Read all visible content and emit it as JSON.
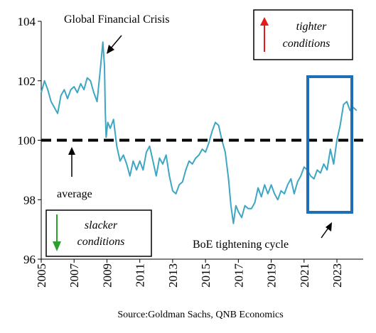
{
  "chart_data": {
    "type": "line",
    "title": "",
    "xlabel": "",
    "ylabel": "",
    "ylim": [
      96,
      104
    ],
    "xlim": [
      2005,
      2024.6
    ],
    "yticks": [
      96,
      98,
      100,
      102,
      104
    ],
    "xticks": [
      "2005",
      "2007",
      "2009",
      "2011",
      "2013",
      "2015",
      "2017",
      "2019",
      "2021",
      "2023"
    ],
    "reference_line": {
      "y": 100,
      "label": "average",
      "style": "dashed",
      "color": "#000000"
    },
    "series": [
      {
        "color": "#3ea6c2",
        "x": [
          2005.0,
          2005.2,
          2005.4,
          2005.6,
          2005.8,
          2006.0,
          2006.2,
          2006.4,
          2006.6,
          2006.8,
          2007.0,
          2007.2,
          2007.4,
          2007.6,
          2007.8,
          2008.0,
          2008.2,
          2008.4,
          2008.6,
          2008.75,
          2008.85,
          2008.9,
          2008.95,
          2009.05,
          2009.2,
          2009.4,
          2009.6,
          2009.8,
          2010.0,
          2010.2,
          2010.4,
          2010.6,
          2010.8,
          2011.0,
          2011.2,
          2011.4,
          2011.6,
          2011.8,
          2012.0,
          2012.2,
          2012.4,
          2012.6,
          2012.8,
          2013.0,
          2013.2,
          2013.4,
          2013.6,
          2013.8,
          2014.0,
          2014.2,
          2014.4,
          2014.6,
          2014.8,
          2015.0,
          2015.2,
          2015.4,
          2015.6,
          2015.8,
          2016.0,
          2016.2,
          2016.4,
          2016.55,
          2016.7,
          2016.85,
          2017.0,
          2017.2,
          2017.4,
          2017.6,
          2017.8,
          2018.0,
          2018.2,
          2018.4,
          2018.6,
          2018.8,
          2019.0,
          2019.2,
          2019.4,
          2019.6,
          2019.8,
          2020.0,
          2020.2,
          2020.4,
          2020.6,
          2020.8,
          2021.0,
          2021.2,
          2021.4,
          2021.6,
          2021.8,
          2022.0,
          2022.2,
          2022.4,
          2022.6,
          2022.8,
          2023.0,
          2023.2,
          2023.4,
          2023.6,
          2023.8,
          2024.0,
          2024.2
        ],
        "values": [
          101.6,
          102.0,
          101.7,
          101.3,
          101.1,
          100.9,
          101.5,
          101.7,
          101.4,
          101.7,
          101.8,
          101.6,
          101.9,
          101.7,
          102.1,
          102.0,
          101.6,
          101.3,
          102.4,
          103.3,
          102.5,
          101.0,
          100.1,
          100.6,
          100.4,
          100.7,
          99.8,
          99.3,
          99.5,
          99.2,
          98.8,
          99.3,
          99.0,
          99.3,
          99.0,
          99.6,
          99.8,
          99.3,
          98.8,
          99.4,
          99.2,
          99.5,
          98.8,
          98.3,
          98.2,
          98.5,
          98.6,
          99.0,
          99.3,
          99.2,
          99.4,
          99.5,
          99.7,
          99.6,
          99.9,
          100.3,
          100.6,
          100.5,
          100.0,
          99.6,
          98.7,
          97.8,
          97.2,
          97.8,
          97.6,
          97.4,
          97.8,
          97.7,
          97.7,
          97.9,
          98.4,
          98.1,
          98.5,
          98.2,
          98.5,
          98.2,
          98.0,
          98.3,
          98.2,
          98.5,
          98.7,
          98.2,
          98.6,
          98.8,
          99.1,
          99.0,
          98.8,
          98.7,
          99.0,
          98.9,
          99.2,
          99.0,
          99.7,
          99.2,
          100.0,
          100.5,
          101.2,
          101.3,
          101.0,
          101.1,
          101.0
        ]
      }
    ],
    "annotations": [
      {
        "text": "Global Financial Crisis"
      },
      {
        "text": "average"
      },
      {
        "text": "BoE tightening cycle"
      }
    ],
    "legend_boxes": {
      "tighter": [
        "tighter",
        "conditions"
      ],
      "slacker": [
        "slacker",
        "conditions"
      ]
    },
    "colors": {
      "line": "#3ea6c2",
      "highlight_box": "#1e6fb8",
      "up_arrow": "#e41a1c",
      "down_arrow": "#2ca02c"
    },
    "source": "Source:Goldman Sachs, QNB Economics"
  }
}
